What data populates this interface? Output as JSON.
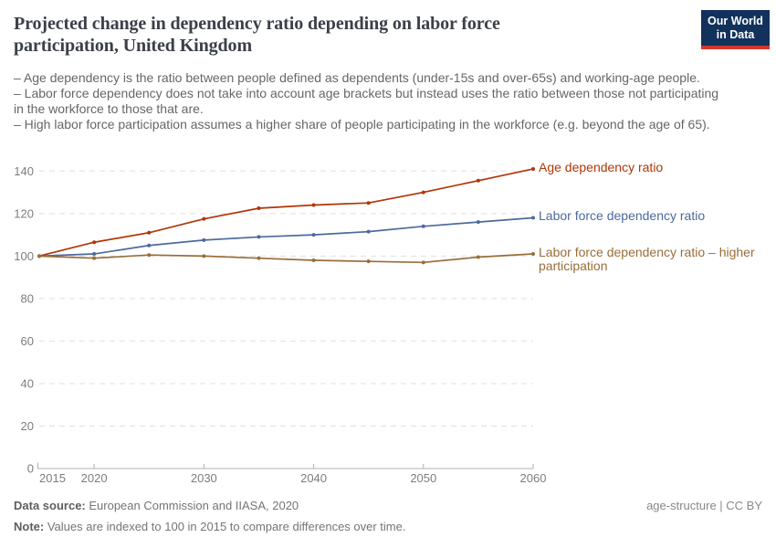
{
  "header": {
    "title": "Projected change in dependency ratio depending on labor force participation, United Kingdom",
    "logo_line1": "Our World",
    "logo_line2": "in Data",
    "subtitle_lines": [
      "– Age dependency is the ratio between people defined as dependents (under-15s and over-65s) and working-age people.",
      "– Labor force dependency does not take into account age brackets but instead uses the ratio between those not participating in the workforce to those that are.",
      "– High labor force participation assumes a higher share of people participating in the workforce (e.g. beyond the age of 65)."
    ]
  },
  "chart_data": {
    "type": "line",
    "title": "Projected change in dependency ratio depending on labor force participation, United Kingdom",
    "x": [
      2015,
      2020,
      2025,
      2030,
      2035,
      2040,
      2045,
      2050,
      2055,
      2060
    ],
    "series": [
      {
        "name": "Age dependency ratio",
        "color": "#B13507",
        "values": [
          100,
          106.5,
          111,
          117.5,
          122.5,
          124,
          125,
          130,
          135.5,
          141
        ]
      },
      {
        "name": "Labor force dependency ratio",
        "color": "#4C6A9C",
        "values": [
          100,
          101,
          105,
          107.5,
          109,
          110,
          111.5,
          114,
          116,
          118
        ]
      },
      {
        "name": "Labor force dependency ratio – higher participation",
        "color": "#996D39",
        "values": [
          100,
          99,
          100.5,
          100,
          99,
          98,
          97.5,
          97,
          99.5,
          101
        ]
      }
    ],
    "ylim": [
      0,
      140
    ],
    "yticks": [
      0,
      20,
      40,
      60,
      80,
      100,
      120,
      140
    ],
    "xticks": [
      2015,
      2020,
      2030,
      2040,
      2050,
      2060
    ],
    "grid": "horizontal-dashed",
    "legend_position": "right-end-labels",
    "ylabel": "",
    "xlabel": ""
  },
  "footer": {
    "data_source_label": "Data source:",
    "data_source_value": " European Commission and IIASA, 2020",
    "note_label": "Note:",
    "note_value": " Values are indexed to 100 in 2015 to compare differences over time.",
    "license_text": "age-structure | CC BY"
  },
  "colors": {
    "accent_red": "#B13507",
    "accent_blue": "#4C6A9C",
    "accent_olive": "#996D39",
    "logo_navy": "#12325c",
    "logo_red": "#d5352e"
  }
}
